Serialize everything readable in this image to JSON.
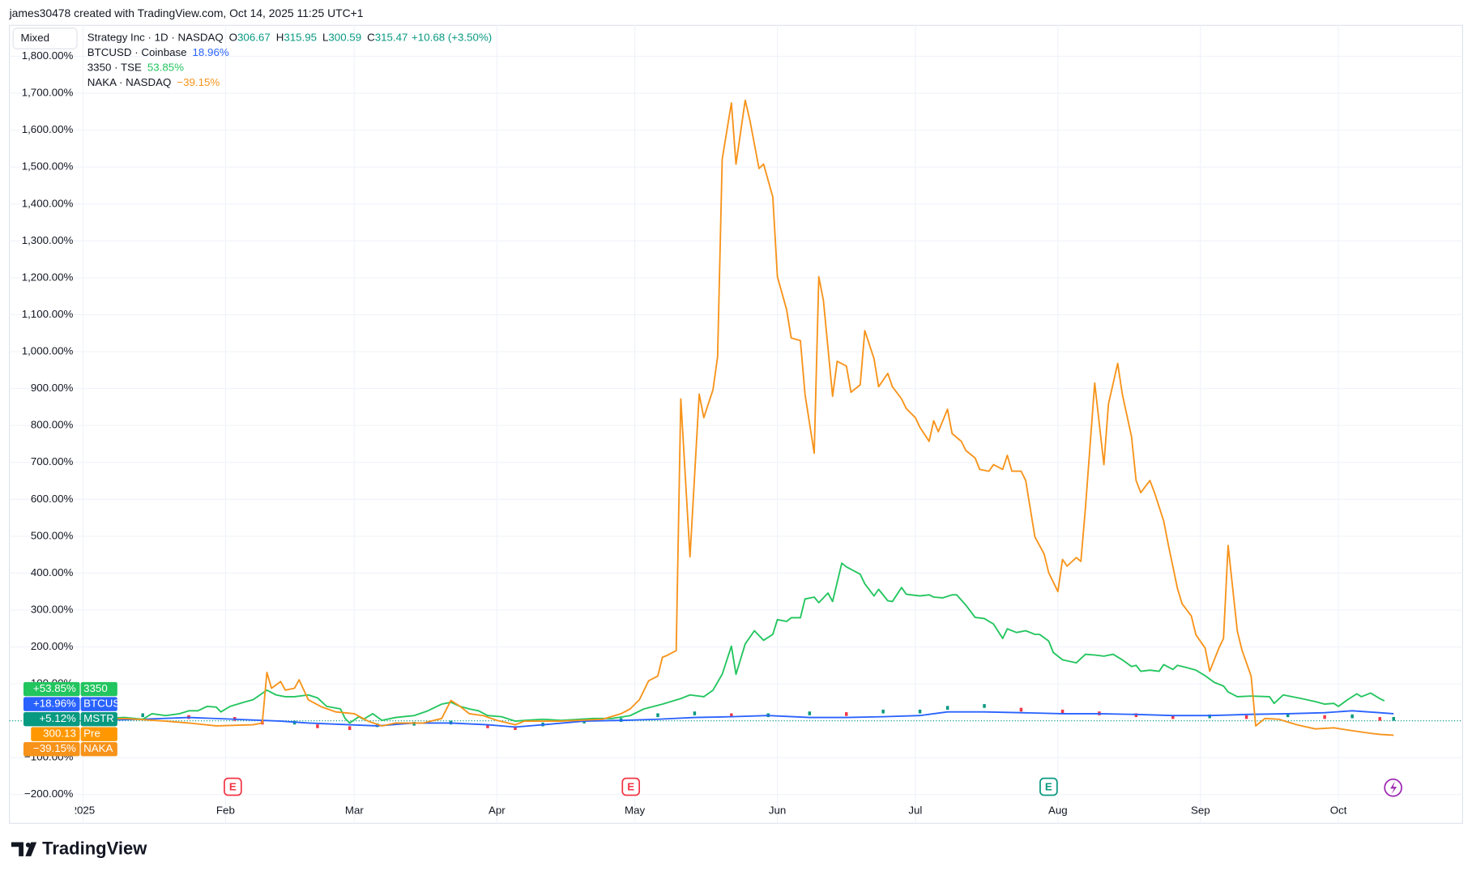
{
  "watermark": "james30478 created with TradingView.com, Oct 14, 2025 11:25 UTC+1",
  "toolbar": {
    "mode": "Mixed"
  },
  "legend": {
    "main": {
      "symbol": "Strategy Inc · 1D · NASDAQ",
      "color": "#089981",
      "fields": [
        {
          "key": "O",
          "value": "306.67"
        },
        {
          "key": "H",
          "value": "315.95"
        },
        {
          "key": "L",
          "value": "300.59"
        },
        {
          "key": "C",
          "value": "315.47"
        }
      ],
      "change": "+10.68 (+3.50%)"
    },
    "compare": [
      {
        "symbol": "BTCUSD · Coinbase",
        "change": "18.96%"
      },
      {
        "symbol": "3350 · TSE",
        "change": "53.85%"
      },
      {
        "symbol": "NAKA · NASDAQ",
        "change": "−39.15%"
      }
    ]
  },
  "price_tags": [
    {
      "value": "300.13",
      "label": "Pre",
      "color": "#ff9800"
    }
  ],
  "earnings_marker": "E",
  "brand": "TradingView",
  "chart_data": {
    "type": "line",
    "xlim": [
      -15,
      301
    ],
    "xticks": [
      {
        "value": 1,
        "label": "2025"
      },
      {
        "value": 32,
        "label": "Feb"
      },
      {
        "value": 60,
        "label": "Mar"
      },
      {
        "value": 91,
        "label": "Apr"
      },
      {
        "value": 121,
        "label": "May"
      },
      {
        "value": 152,
        "label": "Jun"
      },
      {
        "value": 182,
        "label": "Jul"
      },
      {
        "value": 213,
        "label": "Aug"
      },
      {
        "value": 244,
        "label": "Sep"
      },
      {
        "value": 274,
        "label": "Oct"
      }
    ],
    "ylim": [
      -278,
      1884
    ],
    "yticks": [
      {
        "value": -200,
        "label": "−200.00%"
      },
      {
        "value": -100,
        "label": "−100.00%"
      },
      {
        "value": 100,
        "label": "100.00%"
      },
      {
        "value": 200,
        "label": "200.00%"
      },
      {
        "value": 300,
        "label": "300.00%"
      },
      {
        "value": 400,
        "label": "400.00%"
      },
      {
        "value": 500,
        "label": "500.00%"
      },
      {
        "value": 600,
        "label": "600.00%"
      },
      {
        "value": 700,
        "label": "700.00%"
      },
      {
        "value": 800,
        "label": "800.00%"
      },
      {
        "value": 900,
        "label": "900.00%"
      },
      {
        "value": 1000,
        "label": "1,000.00%"
      },
      {
        "value": 1100,
        "label": "1,100.00%"
      },
      {
        "value": 1200,
        "label": "1,200.00%"
      },
      {
        "value": 1300,
        "label": "1,300.00%"
      },
      {
        "value": 1400,
        "label": "1,400.00%"
      },
      {
        "value": 1500,
        "label": "1,500.00%"
      },
      {
        "value": 1600,
        "label": "1,600.00%"
      },
      {
        "value": 1700,
        "label": "1,700.00%"
      },
      {
        "value": 1800,
        "label": "1,800.00%"
      }
    ],
    "grid": true,
    "series": [
      {
        "name": "NAKA",
        "color": "#f7931a",
        "tag": "−39.15%",
        "x": [
          1,
          10,
          19,
          24,
          30,
          38,
          40,
          41,
          42,
          44,
          45,
          47,
          48,
          50,
          51,
          53,
          56,
          60,
          63,
          66,
          69,
          75,
          79,
          81,
          83,
          85,
          88,
          91,
          95,
          97,
          105,
          114,
          118,
          120,
          122,
          124,
          126,
          127,
          128,
          130,
          131,
          133,
          135,
          136,
          138,
          139,
          140,
          142,
          143,
          145,
          146,
          148,
          149,
          151,
          152,
          154,
          155,
          157,
          158,
          160,
          161,
          162,
          164,
          165,
          167,
          168,
          170,
          171,
          173,
          174,
          176,
          177,
          179,
          180,
          182,
          183,
          185,
          186,
          187,
          189,
          190,
          192,
          193,
          195,
          196,
          198,
          199,
          201,
          202,
          203,
          205,
          206,
          208,
          210,
          211,
          213,
          214,
          215,
          217,
          218,
          219,
          221,
          223,
          224,
          226,
          227,
          229,
          230,
          231,
          233,
          234,
          236,
          237,
          239,
          240,
          242,
          243,
          245,
          246,
          248,
          249,
          250,
          252,
          253,
          255,
          256,
          258,
          261,
          265,
          269,
          273,
          277,
          281,
          283,
          286
        ],
        "values": [
          1,
          6,
          -1,
          -6,
          -14,
          -11,
          -6,
          131,
          88,
          106,
          83,
          88,
          111,
          57,
          50,
          37,
          24,
          19,
          -1,
          -14,
          -6,
          -6,
          6,
          55,
          39,
          19,
          14,
          1,
          -11,
          -1,
          -1,
          4,
          19,
          32,
          57,
          108,
          121,
          172,
          177,
          190,
          872,
          444,
          885,
          821,
          897,
          986,
          1521,
          1674,
          1508,
          1681,
          1628,
          1496,
          1508,
          1419,
          1203,
          1114,
          1037,
          1030,
          885,
          725,
          1203,
          1139,
          879,
          974,
          961,
          890,
          910,
          1057,
          981,
          905,
          941,
          905,
          872,
          846,
          821,
          795,
          757,
          813,
          783,
          844,
          778,
          757,
          732,
          712,
          681,
          676,
          694,
          681,
          719,
          676,
          676,
          651,
          498,
          452,
          401,
          350,
          437,
          419,
          442,
          432,
          579,
          915,
          694,
          859,
          968,
          885,
          770,
          651,
          618,
          651,
          618,
          541,
          477,
          358,
          317,
          284,
          233,
          197,
          134,
          197,
          223,
          475,
          243,
          192,
          121,
          -14,
          6,
          4,
          -11,
          -22,
          -19,
          -27,
          -34,
          -37,
          -39.15
        ]
      },
      {
        "name": "3350",
        "color": "#22c55e",
        "tag": "+53.85%",
        "x": [
          1,
          5,
          10,
          14,
          16,
          19,
          22,
          24,
          26,
          28,
          30,
          31,
          33,
          36,
          38,
          41,
          43,
          45,
          47,
          50,
          52,
          54,
          57,
          58,
          59,
          61,
          62,
          64,
          66,
          69,
          73,
          76,
          79,
          81,
          83,
          85,
          87,
          89,
          92,
          95,
          97,
          101,
          105,
          112,
          116,
          120,
          123,
          127,
          131,
          133,
          136,
          138,
          140,
          142,
          143,
          145,
          147,
          149,
          151,
          152,
          154,
          155,
          157,
          158,
          160,
          161,
          163,
          164,
          166,
          167,
          170,
          171,
          173,
          174,
          176,
          177,
          179,
          180,
          183,
          185,
          186,
          188,
          190,
          191,
          193,
          195,
          197,
          199,
          201,
          202,
          204,
          206,
          208,
          209,
          211,
          212,
          214,
          217,
          219,
          221,
          223,
          225,
          227,
          229,
          230,
          231,
          233,
          235,
          236,
          238,
          239,
          241,
          243,
          245,
          247,
          249,
          250,
          252,
          255,
          259,
          260,
          262,
          266,
          269,
          271,
          273,
          274,
          276,
          278,
          279,
          281,
          283,
          284
        ],
        "values": [
          0,
          6,
          9,
          4,
          19,
          14,
          19,
          27,
          27,
          39,
          37,
          24,
          39,
          50,
          57,
          83,
          70,
          65,
          65,
          70,
          62,
          39,
          32,
          6,
          -6,
          11,
          4,
          19,
          1,
          9,
          14,
          27,
          45,
          50,
          39,
          32,
          27,
          14,
          11,
          -1,
          1,
          4,
          1,
          6,
          6,
          14,
          32,
          45,
          60,
          70,
          65,
          83,
          126,
          202,
          126,
          208,
          244,
          218,
          234,
          274,
          269,
          279,
          279,
          330,
          335,
          320,
          346,
          323,
          427,
          417,
          397,
          371,
          338,
          356,
          325,
          323,
          361,
          343,
          338,
          341,
          335,
          333,
          341,
          341,
          313,
          280,
          277,
          262,
          223,
          249,
          239,
          244,
          234,
          234,
          216,
          185,
          165,
          157,
          180,
          178,
          175,
          180,
          165,
          147,
          150,
          134,
          137,
          134,
          152,
          139,
          150,
          144,
          137,
          122,
          104,
          94,
          78,
          65,
          67,
          65,
          47,
          70,
          60,
          52,
          45,
          47,
          39,
          57,
          73,
          65,
          75,
          60,
          53.85
        ]
      },
      {
        "name": "BTCUSD",
        "color": "#2962ff",
        "tag": "+18.96%",
        "x": [
          1,
          14,
          24,
          34,
          44,
          50,
          59,
          65,
          73,
          81,
          89,
          95,
          101,
          110,
          118,
          126,
          134,
          142,
          150,
          159,
          167,
          175,
          183,
          189,
          197,
          205,
          214,
          222,
          230,
          238,
          246,
          254,
          263,
          271,
          277,
          283,
          286
        ],
        "values": [
          0,
          4,
          9,
          4,
          -1,
          -6,
          -11,
          -14,
          -6,
          -6,
          -11,
          -17,
          -11,
          -1,
          1,
          4,
          9,
          11,
          14,
          9,
          9,
          11,
          14,
          24,
          24,
          22,
          19,
          19,
          17,
          14,
          14,
          17,
          19,
          22,
          27,
          22,
          18.96
        ]
      },
      {
        "name": "MSTR",
        "style": "candles",
        "color": "#089981",
        "down_color": "#f23645",
        "tag": "+5.12%",
        "x": [
          1,
          14,
          24,
          34,
          40,
          47,
          52,
          59,
          65,
          73,
          81,
          89,
          95,
          101,
          110,
          118,
          126,
          134,
          142,
          150,
          159,
          167,
          175,
          183,
          189,
          197,
          205,
          214,
          222,
          230,
          238,
          246,
          254,
          263,
          271,
          277,
          283,
          286
        ],
        "values": [
          0,
          15,
          10,
          5,
          -5,
          -5,
          -15,
          -20,
          -12,
          -8,
          -5,
          -15,
          -20,
          -10,
          -2,
          2,
          15,
          20,
          15,
          15,
          20,
          18,
          25,
          25,
          35,
          40,
          30,
          25,
          20,
          15,
          10,
          12,
          10,
          15,
          10,
          12,
          5,
          5.12
        ]
      }
    ]
  }
}
